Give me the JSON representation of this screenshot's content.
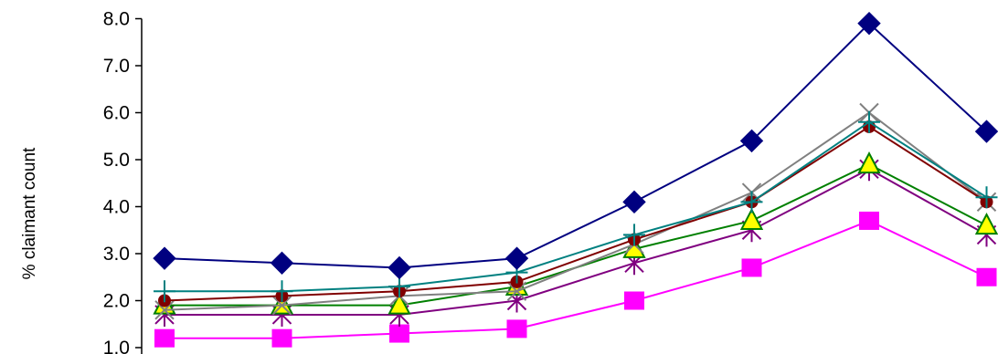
{
  "chart_data": {
    "type": "line",
    "title": "",
    "xlabel": "",
    "ylabel": "% claimant count",
    "ylim": [
      1.0,
      8.0
    ],
    "yticks": [
      "1.0",
      "2.0",
      "3.0",
      "4.0",
      "5.0",
      "6.0",
      "7.0",
      "8.0"
    ],
    "grid": false,
    "legend": "none",
    "x": [
      1,
      2,
      3,
      4,
      5,
      6,
      7,
      8
    ],
    "series": [
      {
        "color": "#000080",
        "marker": "diamond",
        "values": [
          2.9,
          2.8,
          2.7,
          2.9,
          4.1,
          5.4,
          7.9,
          5.6
        ]
      },
      {
        "color": "#008080",
        "marker": "plus",
        "values": [
          2.2,
          2.2,
          2.3,
          2.6,
          3.4,
          4.1,
          5.8,
          4.2
        ]
      },
      {
        "color": "#800000",
        "marker": "circle",
        "values": [
          2.0,
          2.1,
          2.2,
          2.4,
          3.3,
          4.1,
          5.7,
          4.1
        ]
      },
      {
        "color": "#808080",
        "marker": "x",
        "values": [
          1.8,
          1.9,
          2.1,
          2.2,
          3.2,
          4.3,
          6.0,
          4.1
        ]
      },
      {
        "color": "#008000",
        "marker": "triangle",
        "values": [
          1.9,
          1.9,
          1.9,
          2.3,
          3.1,
          3.7,
          4.9,
          3.6
        ]
      },
      {
        "color": "#800080",
        "marker": "star",
        "values": [
          1.7,
          1.7,
          1.7,
          2.0,
          2.8,
          3.5,
          4.8,
          3.4
        ]
      },
      {
        "color": "#FF00FF",
        "marker": "square",
        "values": [
          1.2,
          1.2,
          1.3,
          1.4,
          2.0,
          2.7,
          3.7,
          2.5
        ]
      }
    ]
  }
}
